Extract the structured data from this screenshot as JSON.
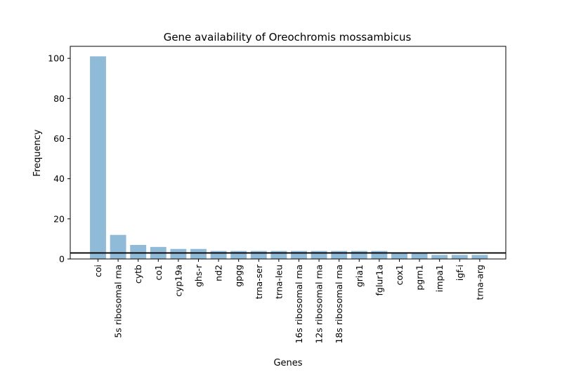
{
  "chart_data": {
    "type": "bar",
    "title": "Gene availability of Oreochromis mossambicus",
    "xlabel": "Genes",
    "ylabel": "Frequency",
    "categories": [
      "coi",
      "5s ribosomal rna",
      "cytb",
      "co1",
      "cyp19a",
      "ghs-r",
      "nd2",
      "gpgg",
      "trna-ser",
      "trna-leu",
      "16s ribosomal rna",
      "12s ribosomal rna",
      "18s ribosomal rna",
      "gria1",
      "fglur1a",
      "cox1",
      "pgrn1",
      "impa1",
      "igf-i",
      "trna-arg"
    ],
    "values": [
      101,
      12,
      7,
      6,
      5,
      5,
      4,
      4,
      4,
      4,
      4,
      4,
      4,
      4,
      4,
      3,
      3,
      2,
      2,
      2
    ],
    "ylim": [
      0,
      106
    ],
    "yticks": [
      0,
      20,
      40,
      60,
      80,
      100
    ],
    "threshold_line": 3,
    "bar_color": "#8fbbd9",
    "line_color": "#000000",
    "grid": false,
    "legend": "none"
  }
}
